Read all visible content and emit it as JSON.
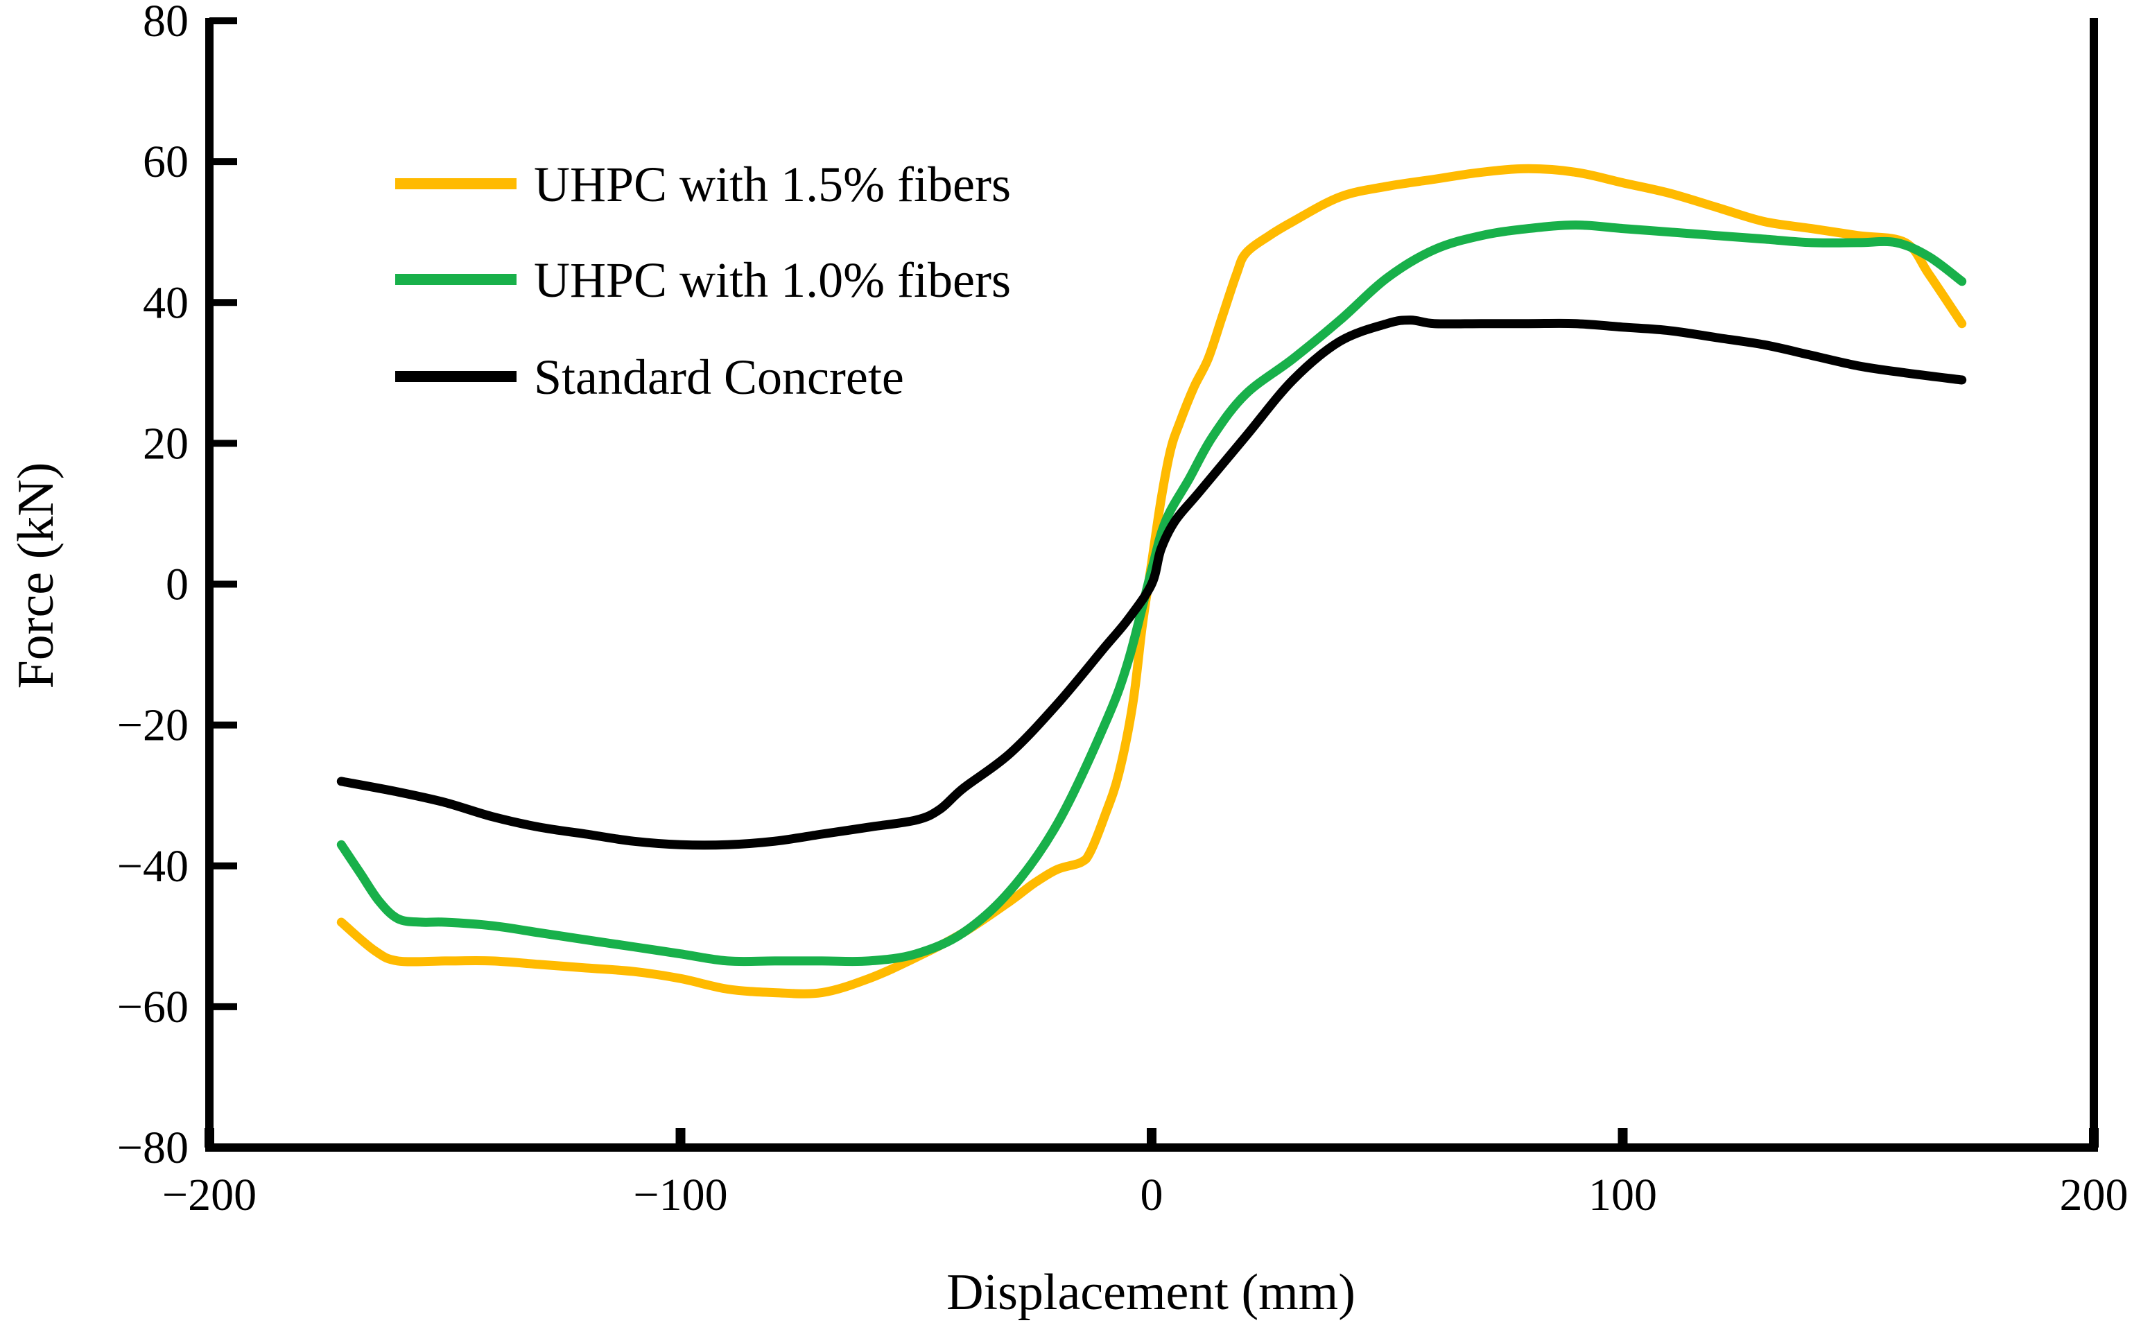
{
  "chart_data": {
    "type": "line",
    "title": "",
    "xlabel": "Displacement (mm)",
    "ylabel": "Force (kN)",
    "xlim": [
      -200,
      200
    ],
    "ylim": [
      -80,
      80
    ],
    "x_ticks": [
      -200,
      -100,
      0,
      100,
      200
    ],
    "y_ticks": [
      80,
      60,
      40,
      20,
      0,
      -20,
      -40,
      -60,
      -80
    ],
    "x_tick_labels": [
      "−200",
      "−100",
      "0",
      "100",
      "200"
    ],
    "y_tick_labels": [
      "80",
      "60",
      "40",
      "20",
      "0",
      "−20",
      "−40",
      "−60",
      "−80"
    ],
    "grid": false,
    "legend_position": "top-left",
    "series": [
      {
        "name": "UHPC with 1.5% fibers",
        "color": "#FFBA00",
        "points": [
          [
            -172,
            -48
          ],
          [
            -165,
            -52
          ],
          [
            -160,
            -53.5
          ],
          [
            -150,
            -53.5
          ],
          [
            -140,
            -53.5
          ],
          [
            -130,
            -54
          ],
          [
            -120,
            -54.5
          ],
          [
            -110,
            -55
          ],
          [
            -100,
            -56
          ],
          [
            -90,
            -57.5
          ],
          [
            -80,
            -58
          ],
          [
            -70,
            -58
          ],
          [
            -60,
            -56
          ],
          [
            -50,
            -53
          ],
          [
            -40,
            -49.5
          ],
          [
            -30,
            -45
          ],
          [
            -25,
            -42.5
          ],
          [
            -20,
            -40.5
          ],
          [
            -15,
            -39.5
          ],
          [
            -13,
            -38
          ],
          [
            -10,
            -33
          ],
          [
            -7,
            -27
          ],
          [
            -4,
            -17
          ],
          [
            -2,
            -6
          ],
          [
            0,
            3
          ],
          [
            2,
            12
          ],
          [
            4,
            19
          ],
          [
            6,
            23
          ],
          [
            9,
            28
          ],
          [
            12,
            32
          ],
          [
            15,
            38
          ],
          [
            18,
            44
          ],
          [
            20,
            47
          ],
          [
            25,
            49.5
          ],
          [
            30,
            51.5
          ],
          [
            40,
            55
          ],
          [
            50,
            56.5
          ],
          [
            60,
            57.5
          ],
          [
            70,
            58.5
          ],
          [
            80,
            59
          ],
          [
            90,
            58.5
          ],
          [
            100,
            57
          ],
          [
            110,
            55.5
          ],
          [
            120,
            53.5
          ],
          [
            130,
            51.5
          ],
          [
            140,
            50.5
          ],
          [
            150,
            49.5
          ],
          [
            160,
            48.5
          ],
          [
            165,
            44
          ],
          [
            172,
            37
          ]
        ]
      },
      {
        "name": "UHPC with 1.0% fibers",
        "color": "#18B04A",
        "points": [
          [
            -172,
            -37
          ],
          [
            -168,
            -41
          ],
          [
            -164,
            -45
          ],
          [
            -160,
            -47.5
          ],
          [
            -155,
            -48
          ],
          [
            -150,
            -48
          ],
          [
            -140,
            -48.5
          ],
          [
            -130,
            -49.5
          ],
          [
            -120,
            -50.5
          ],
          [
            -110,
            -51.5
          ],
          [
            -100,
            -52.5
          ],
          [
            -90,
            -53.5
          ],
          [
            -80,
            -53.5
          ],
          [
            -70,
            -53.5
          ],
          [
            -60,
            -53.5
          ],
          [
            -50,
            -52.5
          ],
          [
            -40,
            -49.5
          ],
          [
            -30,
            -43.5
          ],
          [
            -20,
            -34
          ],
          [
            -10,
            -20
          ],
          [
            -5,
            -11
          ],
          [
            0,
            2
          ],
          [
            3,
            9
          ],
          [
            8,
            15
          ],
          [
            13,
            21
          ],
          [
            20,
            27
          ],
          [
            30,
            32
          ],
          [
            40,
            37.5
          ],
          [
            50,
            43.5
          ],
          [
            60,
            47.5
          ],
          [
            70,
            49.5
          ],
          [
            80,
            50.5
          ],
          [
            90,
            51
          ],
          [
            100,
            50.5
          ],
          [
            110,
            50
          ],
          [
            120,
            49.5
          ],
          [
            130,
            49
          ],
          [
            140,
            48.5
          ],
          [
            150,
            48.5
          ],
          [
            158,
            48.5
          ],
          [
            165,
            46.5
          ],
          [
            172,
            43
          ]
        ]
      },
      {
        "name": "Standard Concrete",
        "color": "#000000",
        "points": [
          [
            -172,
            -28
          ],
          [
            -160,
            -29.5
          ],
          [
            -150,
            -31
          ],
          [
            -140,
            -33
          ],
          [
            -130,
            -34.5
          ],
          [
            -120,
            -35.5
          ],
          [
            -110,
            -36.5
          ],
          [
            -100,
            -37
          ],
          [
            -90,
            -37
          ],
          [
            -80,
            -36.5
          ],
          [
            -70,
            -35.5
          ],
          [
            -60,
            -34.5
          ],
          [
            -50,
            -33.5
          ],
          [
            -45,
            -32
          ],
          [
            -40,
            -29
          ],
          [
            -30,
            -24
          ],
          [
            -20,
            -17
          ],
          [
            -10,
            -9
          ],
          [
            -5,
            -5
          ],
          [
            0,
            0
          ],
          [
            2,
            5
          ],
          [
            5,
            9
          ],
          [
            10,
            13
          ],
          [
            20,
            21
          ],
          [
            30,
            29
          ],
          [
            40,
            34.5
          ],
          [
            50,
            37
          ],
          [
            55,
            37.5
          ],
          [
            60,
            37
          ],
          [
            70,
            37
          ],
          [
            80,
            37
          ],
          [
            90,
            37
          ],
          [
            100,
            36.5
          ],
          [
            110,
            36
          ],
          [
            120,
            35
          ],
          [
            130,
            34
          ],
          [
            140,
            32.5
          ],
          [
            150,
            31
          ],
          [
            160,
            30
          ],
          [
            172,
            29
          ]
        ]
      }
    ]
  },
  "colors": {
    "background": "#ffffff",
    "axis": "#000000"
  }
}
